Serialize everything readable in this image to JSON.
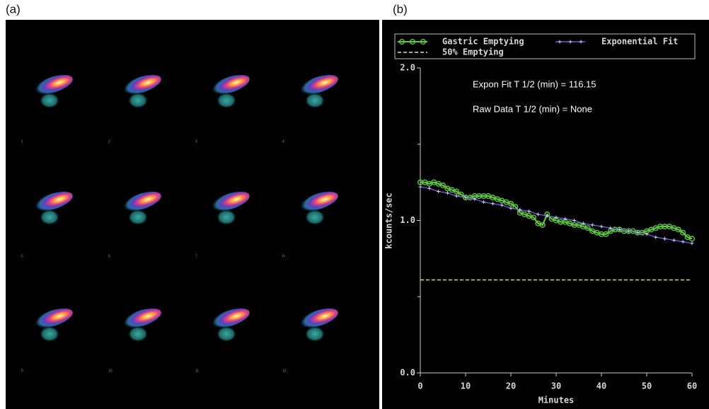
{
  "panel_labels": [
    "(a)",
    "(b)"
  ],
  "frame_labels": [
    "1",
    "2",
    "3",
    "4",
    "5",
    "6",
    "7",
    "8",
    "9",
    "10",
    "11",
    "12"
  ],
  "chart_data": {
    "type": "line",
    "xlabel": "Minutes",
    "ylabel": "kcounts/sec",
    "annotations": [
      "Expon Fit T 1/2 (min) = 116.15",
      "Raw Data T 1/2 (min) = None"
    ],
    "xlim": [
      0,
      60
    ],
    "xticks": [
      0,
      10,
      20,
      30,
      40,
      50,
      60
    ],
    "ylim": [
      0,
      2
    ],
    "yticks": [
      {
        "value": 0,
        "label": "0.0"
      },
      {
        "value": 1,
        "label": "1.0"
      },
      {
        "value": 2,
        "label": "2.0"
      }
    ],
    "yminor_ticks": [
      0.5,
      1.5
    ],
    "series": [
      {
        "name": "Gastric Emptying",
        "color": "#5dc83c",
        "marker": "circle",
        "x": [
          0,
          1,
          2,
          3,
          4,
          5,
          6,
          7,
          8,
          9,
          10,
          11,
          12,
          13,
          14,
          15,
          16,
          17,
          18,
          19,
          20,
          21,
          22,
          23,
          24,
          25,
          26,
          27,
          28,
          29,
          30,
          31,
          32,
          33,
          34,
          35,
          36,
          37,
          38,
          39,
          40,
          41,
          42,
          43,
          44,
          45,
          46,
          47,
          48,
          49,
          50,
          51,
          52,
          53,
          54,
          55,
          56,
          57,
          58,
          59,
          60
        ],
        "values": [
          1.25,
          1.25,
          1.24,
          1.25,
          1.24,
          1.23,
          1.21,
          1.2,
          1.19,
          1.17,
          1.15,
          1.15,
          1.16,
          1.16,
          1.16,
          1.16,
          1.15,
          1.14,
          1.13,
          1.12,
          1.11,
          1.09,
          1.05,
          1.04,
          1.03,
          1.02,
          0.98,
          0.97,
          1.04,
          1.01,
          1.0,
          0.99,
          0.99,
          0.98,
          0.97,
          0.97,
          0.96,
          0.95,
          0.93,
          0.92,
          0.91,
          0.91,
          0.93,
          0.94,
          0.94,
          0.93,
          0.93,
          0.93,
          0.92,
          0.92,
          0.93,
          0.94,
          0.95,
          0.96,
          0.96,
          0.96,
          0.95,
          0.94,
          0.92,
          0.89,
          0.88
        ]
      },
      {
        "name": "Exponential Fit",
        "color": "#6a5acd",
        "marker": "plus",
        "x": [
          0,
          2,
          4,
          6,
          8,
          10,
          12,
          14,
          16,
          18,
          20,
          22,
          24,
          26,
          28,
          30,
          32,
          34,
          36,
          38,
          40,
          42,
          44,
          46,
          48,
          50,
          52,
          54,
          56,
          58,
          60
        ],
        "values": [
          1.22,
          1.21,
          1.19,
          1.18,
          1.16,
          1.15,
          1.14,
          1.12,
          1.11,
          1.1,
          1.08,
          1.07,
          1.06,
          1.04,
          1.03,
          1.02,
          1.01,
          1.0,
          0.98,
          0.97,
          0.96,
          0.95,
          0.94,
          0.93,
          0.92,
          0.91,
          0.89,
          0.88,
          0.87,
          0.86,
          0.85
        ]
      },
      {
        "name": "50% Emptying",
        "color": "#e8e880",
        "marker": "dash",
        "x": [
          0,
          60
        ],
        "values": [
          0.61,
          0.61
        ]
      }
    ]
  }
}
